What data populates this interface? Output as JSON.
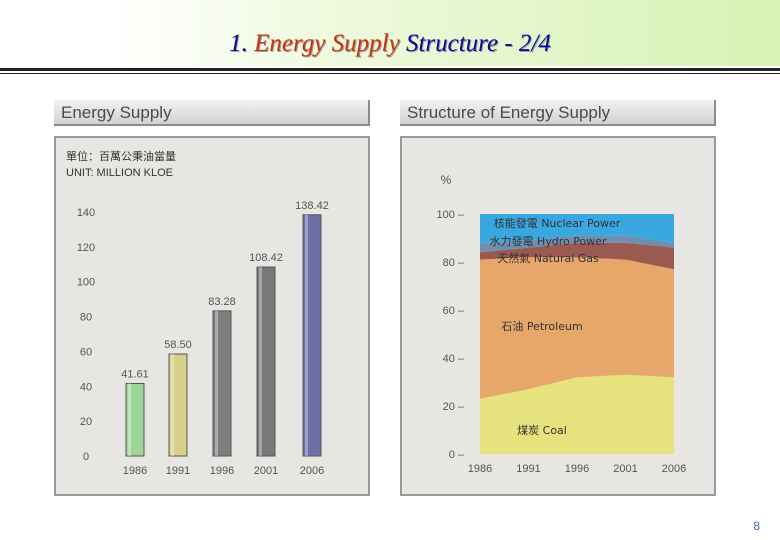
{
  "slide": {
    "title_number": "1.",
    "title_highlight": "Energy Supply",
    "title_rest": "Structure - 2/4",
    "page_number": "8"
  },
  "chart_data": [
    {
      "type": "bar",
      "title": "Energy Supply",
      "unit_zh": "單位：百萬公秉油當量",
      "unit_en": "UNIT: MILLION KLOE",
      "categories": [
        "1986",
        "1991",
        "1996",
        "2001",
        "2006"
      ],
      "values": [
        41.61,
        58.5,
        83.28,
        108.42,
        138.42
      ],
      "value_labels": [
        "41.61",
        "58.50",
        "83.28",
        "108.42",
        "138.42"
      ],
      "bar_colors": [
        "#9fd49a",
        "#d8d08a",
        "#7e7e7e",
        "#787878",
        "#6e6ea8"
      ],
      "ylim": [
        0,
        140
      ],
      "yticks": [
        "0",
        "20",
        "40",
        "60",
        "80",
        "100",
        "120",
        "140"
      ],
      "grid": false
    },
    {
      "type": "area",
      "title": "Structure of Energy Supply",
      "ylabel": "%",
      "x": [
        "1986",
        "1991",
        "1996",
        "2001",
        "2006"
      ],
      "ylim": [
        0,
        100
      ],
      "yticks": [
        "0 –",
        "20 –",
        "40 –",
        "60 –",
        "80 –",
        "100 –"
      ],
      "series": [
        {
          "name": "煤炭 Coal",
          "color": "#e6e27e",
          "values": [
            23,
            27,
            32,
            33,
            32
          ]
        },
        {
          "name": "石油 Petroleum",
          "color": "#e8a76a",
          "values": [
            58,
            55,
            50,
            48,
            45
          ]
        },
        {
          "name": "天然氣 Natural Gas",
          "color": "#9a5a52",
          "values": [
            3,
            4,
            6,
            7,
            9
          ]
        },
        {
          "name": "水力發電 Hydro Power",
          "color": "#6f8fb0",
          "values": [
            4,
            3,
            3,
            3,
            2
          ]
        },
        {
          "name": "核能發電 Nuclear Power",
          "color": "#3aa8e0",
          "values": [
            12,
            11,
            9,
            9,
            12
          ]
        }
      ]
    }
  ]
}
